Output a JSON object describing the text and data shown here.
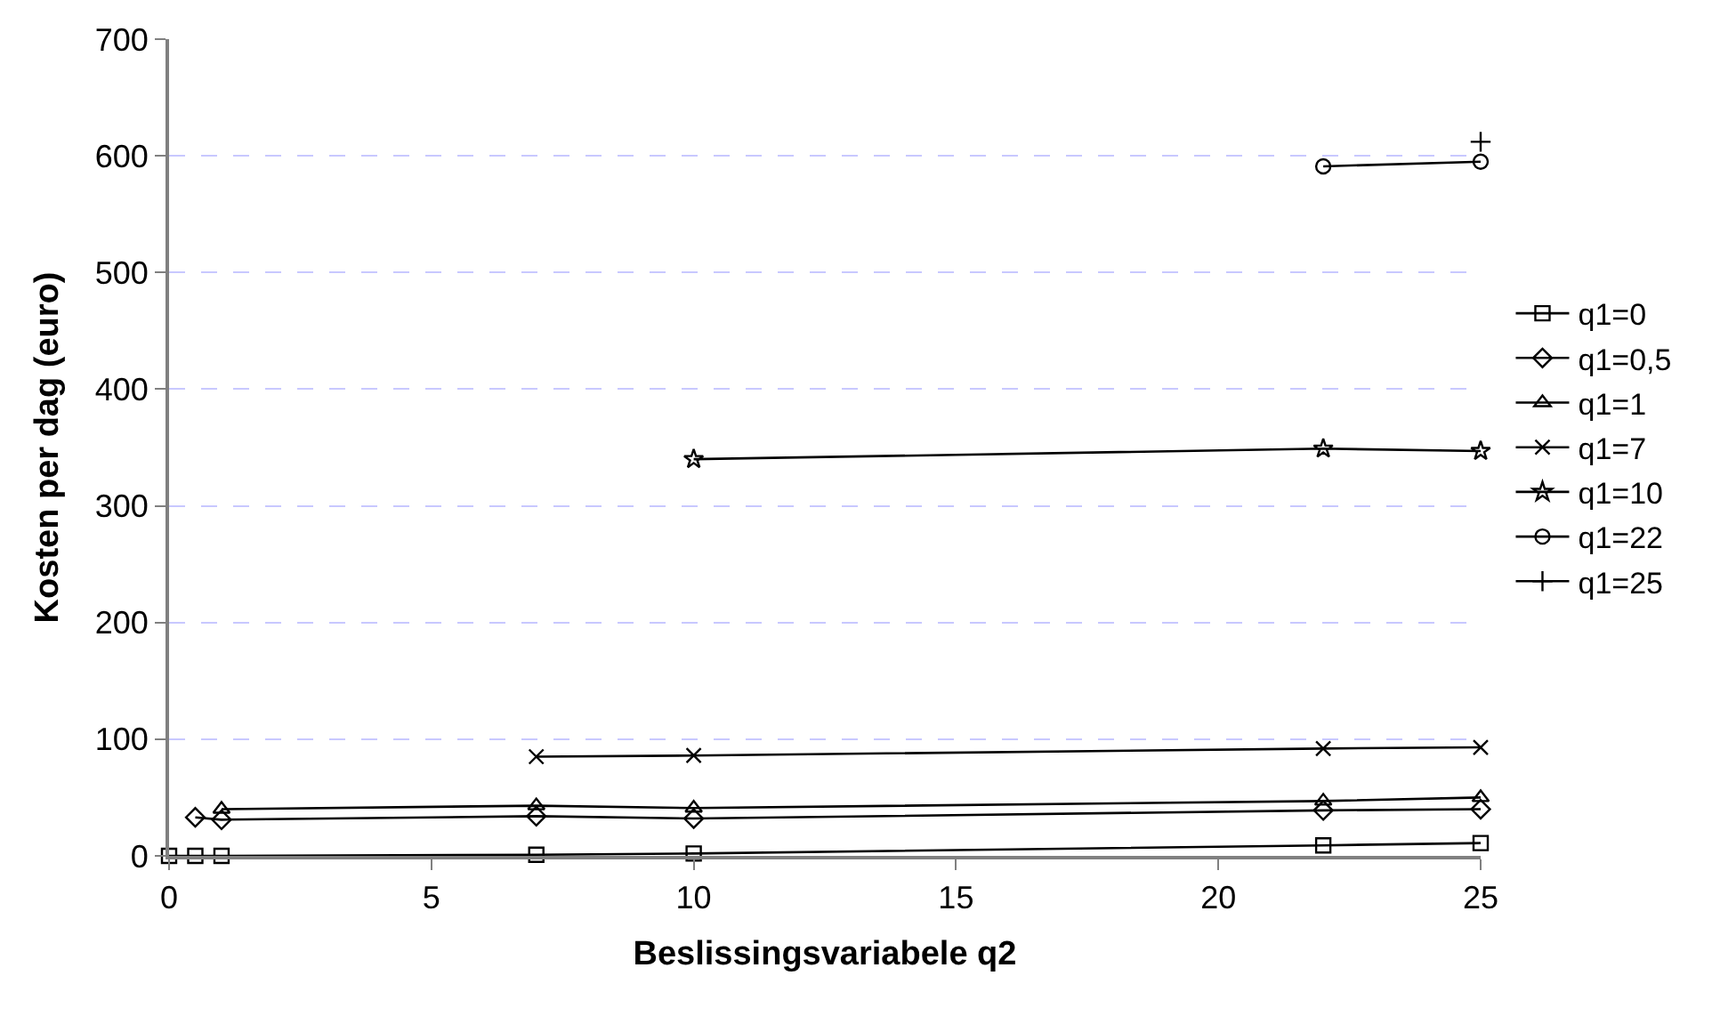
{
  "chart_data": {
    "type": "line",
    "xlabel": "Beslissingsvariabele q2",
    "ylabel": "Kosten per dag (euro)",
    "xlim": [
      0,
      25
    ],
    "xticks": [
      0,
      5,
      10,
      15,
      20,
      25
    ],
    "ylim": [
      0,
      700
    ],
    "yticks": [
      0,
      100,
      200,
      300,
      400,
      500,
      600,
      700
    ],
    "grid": "y",
    "legend": "right",
    "line_style": "solid",
    "series": [
      {
        "name": "q1=0",
        "color": "#000000",
        "marker": "square",
        "x": [
          0,
          0.5,
          1,
          7,
          10,
          22,
          25
        ],
        "values": [
          0,
          0,
          0,
          1,
          2,
          9,
          11
        ]
      },
      {
        "name": "q1=0,5",
        "color": "#000000",
        "marker": "diamond",
        "x": [
          0.5,
          1,
          7,
          10,
          22,
          25
        ],
        "values": [
          33,
          31,
          34,
          32,
          39,
          40
        ]
      },
      {
        "name": "q1=1",
        "color": "#000000",
        "marker": "triangle",
        "x": [
          1,
          7,
          10,
          22,
          25
        ],
        "values": [
          40,
          43,
          41,
          47,
          50
        ]
      },
      {
        "name": "q1=7",
        "color": "#000000",
        "marker": "x",
        "x": [
          7,
          10,
          22,
          25
        ],
        "values": [
          85,
          86,
          92,
          93
        ]
      },
      {
        "name": "q1=10",
        "color": "#000000",
        "marker": "star",
        "x": [
          10,
          22,
          25
        ],
        "values": [
          340,
          349,
          347
        ]
      },
      {
        "name": "q1=22",
        "color": "#000000",
        "marker": "circle",
        "x": [
          22,
          25
        ],
        "values": [
          591,
          595
        ]
      },
      {
        "name": "q1=25",
        "color": "#000000",
        "marker": "cross",
        "x": [
          25
        ],
        "values": [
          612
        ]
      }
    ]
  }
}
